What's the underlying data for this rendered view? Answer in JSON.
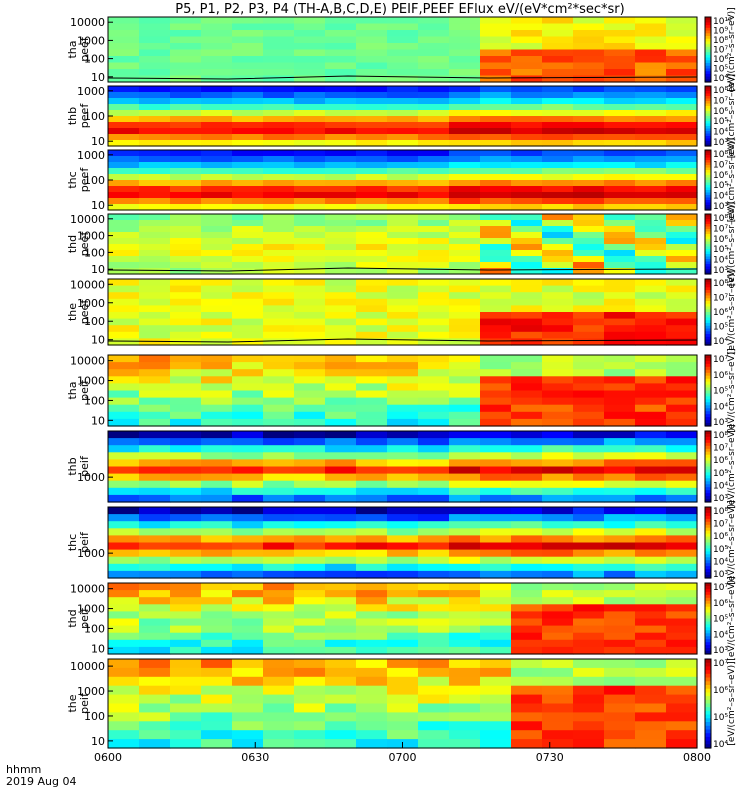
{
  "chart_data": {
    "type": "heatmap",
    "title": "P5, P1, P2, P3, P4 (TH-A,B,C,D,E) PEIF,PEEF EFlux eV/(eV*cm²*sec*sr)",
    "x_label_line1": "hhmm",
    "x_label_line2": "2019 Aug 04",
    "x_ticks": [
      "0600",
      "0630",
      "0700",
      "0730",
      "0800"
    ],
    "x_range": [
      "0600",
      "0800"
    ],
    "colorscale": "rainbow (log)",
    "shared_colorbar_title": "[eV/(cm²–s–sr–eV)]",
    "panels": [
      {
        "probe": "tha",
        "product": "peef",
        "y_scale": "log",
        "y_ticks": [
          "10",
          "100",
          "1000",
          "10000"
        ],
        "cb_ticks": [
          "10⁴",
          "10⁵",
          "10⁶",
          "10⁷",
          "10⁸",
          "10⁹",
          "10¹⁰"
        ],
        "cb_title": "[eV/(cm²–s–sr–eV)]",
        "contour_line": true,
        "transition_time": "0717"
      },
      {
        "probe": "thb",
        "product": "peef",
        "y_scale": "log",
        "y_ticks": [
          "10",
          "100",
          "1000"
        ],
        "cb_ticks": [
          "10³",
          "10⁴",
          "10⁵",
          "10⁶",
          "10⁷",
          "10⁸"
        ],
        "cb_title": "[eV/(cm²–s–sr–eV)]",
        "contour_line": false,
        "transition_time": "0707"
      },
      {
        "probe": "thc",
        "product": "peef",
        "y_scale": "log",
        "y_ticks": [
          "10",
          "100",
          "1000"
        ],
        "cb_ticks": [
          "10³",
          "10⁴",
          "10⁵",
          "10⁶",
          "10⁷",
          "10⁸"
        ],
        "cb_title": "[eV/(cm²–s–sr–eV)]",
        "contour_line": false,
        "transition_time": "0707"
      },
      {
        "probe": "thd",
        "product": "peef",
        "y_scale": "log",
        "y_ticks": [
          "10",
          "100",
          "1000",
          "10000"
        ],
        "cb_ticks": [
          "10³",
          "10⁴",
          "10⁵",
          "10⁶",
          "10⁷",
          "10⁸"
        ],
        "cb_title": "[eV/(cm²–s–sr–eV)]",
        "contour_line": true,
        "transition_time": "0714"
      },
      {
        "probe": "the",
        "product": "peef",
        "y_scale": "log",
        "y_ticks": [
          "10",
          "100",
          "1000",
          "10000"
        ],
        "cb_ticks": [
          "10⁴",
          "10⁵",
          "10⁶",
          "10⁷",
          "10⁸"
        ],
        "cb_title": "[eV/(cm²–s–sr–eV)]",
        "contour_line": true,
        "transition_time": "0715"
      },
      {
        "probe": "tha",
        "product": "peif",
        "y_scale": "log",
        "y_ticks": [
          "10",
          "100",
          "1000",
          "10000"
        ],
        "cb_ticks": [
          "10³",
          "10⁴",
          "10⁵",
          "10⁶",
          "10⁷"
        ],
        "cb_title": "[eV/(cm²–s–sr–eV)]",
        "contour_line": false,
        "transition_time": "0715"
      },
      {
        "probe": "thb",
        "product": "peif",
        "y_scale": "log",
        "y_ticks": [
          "1000"
        ],
        "cb_ticks": [
          "10³",
          "10⁴",
          "10⁵",
          "10⁶",
          "10⁷",
          "10⁸"
        ],
        "cb_title": "[eV/(cm²–s–sr–eV)]",
        "contour_line": false,
        "transition_time": "0707"
      },
      {
        "probe": "thc",
        "product": "peif",
        "y_scale": "log",
        "y_ticks": [
          "1000"
        ],
        "cb_ticks": [
          "10³",
          "10⁴",
          "10⁵",
          "10⁶",
          "10⁷",
          "10⁸"
        ],
        "cb_title": "[eV/(cm²–s–sr–eV)]",
        "contour_line": false,
        "transition_time": "0707"
      },
      {
        "probe": "thd",
        "product": "peif",
        "y_scale": "log",
        "y_ticks": [
          "10",
          "100",
          "1000",
          "10000"
        ],
        "cb_ticks": [
          "10³",
          "10⁴",
          "10⁵",
          "10⁶",
          "10⁷"
        ],
        "cb_title": "[eV/(cm²–s–sr–eV)]",
        "contour_line": false,
        "transition_time": "0721"
      },
      {
        "probe": "the",
        "product": "peif",
        "y_scale": "log",
        "y_ticks": [
          "10",
          "100",
          "1000",
          "10000"
        ],
        "cb_ticks": [
          "10⁴",
          "10⁵",
          "10⁶",
          "10⁷"
        ],
        "cb_title": "[eV/(cm²–s–sr–eV)]",
        "contour_line": false,
        "transition_time": "0722"
      }
    ]
  }
}
